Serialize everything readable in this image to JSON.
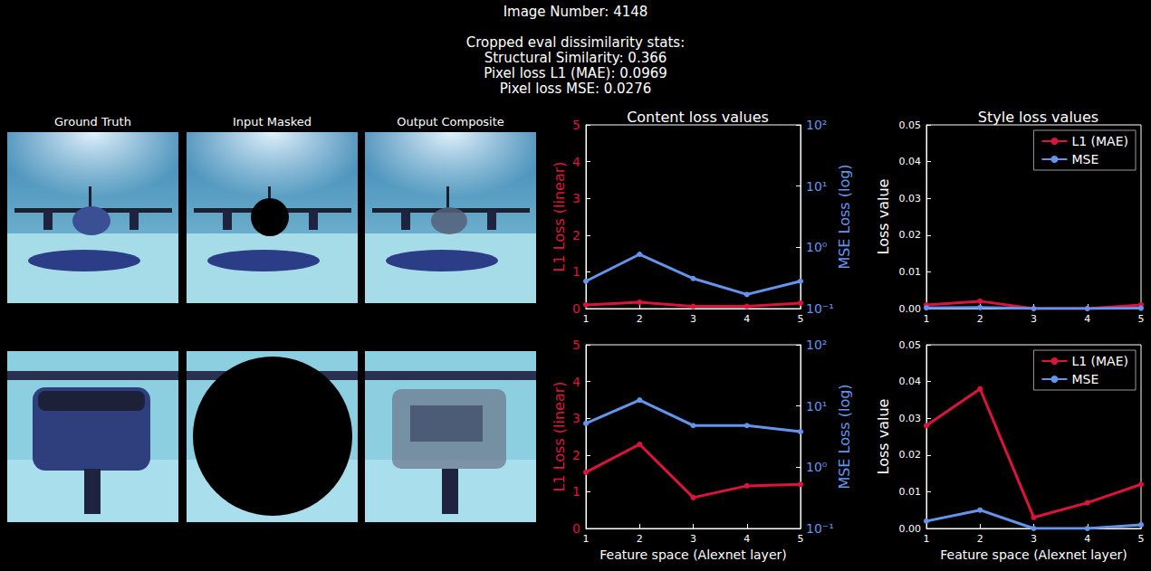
{
  "header": {
    "title": "Image Number: 4148",
    "stats_heading": "Cropped eval dissimilarity stats:",
    "stats": [
      "Structural Similarity: 0.366",
      "Pixel loss L1 (MAE): 0.0969",
      "Pixel loss MSE: 0.0276"
    ]
  },
  "images": {
    "column_titles": [
      "Ground Truth",
      "Input Masked",
      "Output Composite"
    ]
  },
  "chart_data": [
    {
      "type": "line",
      "title": "Content loss values",
      "x": [
        1,
        2,
        3,
        4,
        5
      ],
      "xlim": [
        1,
        5
      ],
      "xticks": [
        1,
        2,
        3,
        4,
        5
      ],
      "ylabel": "L1 Loss (linear)",
      "ylim": [
        0,
        5
      ],
      "yticks": [
        0,
        1,
        2,
        3,
        4,
        5
      ],
      "y2label": "MSE Loss (log)",
      "y2lim": [
        0.1,
        100
      ],
      "y2ticks": [
        {
          "value": 0.1,
          "label": "10⁻¹"
        },
        {
          "value": 1,
          "label": "10⁰"
        },
        {
          "value": 10,
          "label": "10¹"
        },
        {
          "value": 100,
          "label": "10²"
        }
      ],
      "log": "y2",
      "grid": false,
      "series": [
        {
          "color": "#dc143c",
          "marker": "circle",
          "values": [
            0.1,
            0.17,
            0.06,
            0.06,
            0.15
          ]
        },
        {
          "color": "#6495ed",
          "marker": "circle",
          "axis": "y2",
          "values": [
            0.28,
            0.77,
            0.31,
            0.17,
            0.28
          ]
        }
      ]
    },
    {
      "type": "line",
      "title": "Style loss values",
      "x": [
        1,
        2,
        3,
        4,
        5
      ],
      "xlim": [
        1,
        5
      ],
      "xticks": [
        1,
        2,
        3,
        4,
        5
      ],
      "ylabel": "Loss value",
      "ylim": [
        0,
        0.05
      ],
      "yticks": [
        {
          "value": 0,
          "label": "0.00"
        },
        {
          "value": 0.01,
          "label": "0.01"
        },
        {
          "value": 0.02,
          "label": "0.02"
        },
        {
          "value": 0.03,
          "label": "0.03"
        },
        {
          "value": 0.04,
          "label": "0.04"
        },
        {
          "value": 0.05,
          "label": "0.05"
        }
      ],
      "grid": false,
      "legend": "upper right",
      "series": [
        {
          "name": "L1 (MAE)",
          "color": "#dc143c",
          "marker": "circle",
          "values": [
            0.001,
            0.002,
            0.0,
            0.0,
            0.001
          ]
        },
        {
          "name": "MSE",
          "color": "#6495ed",
          "marker": "circle",
          "values": [
            0.0002,
            0.0003,
            0.0,
            0.0,
            0.0001
          ]
        }
      ]
    },
    {
      "type": "line",
      "x": [
        1,
        2,
        3,
        4,
        5
      ],
      "xlim": [
        1,
        5
      ],
      "xticks": [
        1,
        2,
        3,
        4,
        5
      ],
      "xlabel": "Feature space (Alexnet layer)",
      "ylabel": "L1 Loss (linear)",
      "ylim": [
        0,
        5
      ],
      "yticks": [
        0,
        1,
        2,
        3,
        4,
        5
      ],
      "y2label": "MSE Loss (log)",
      "y2lim": [
        0.1,
        100
      ],
      "y2ticks": [
        {
          "value": 0.1,
          "label": "10⁻¹"
        },
        {
          "value": 1,
          "label": "10⁰"
        },
        {
          "value": 10,
          "label": "10¹"
        },
        {
          "value": 100,
          "label": "10²"
        }
      ],
      "log": "y2",
      "grid": false,
      "series": [
        {
          "color": "#dc143c",
          "marker": "circle",
          "values": [
            1.53,
            2.29,
            0.84,
            1.16,
            1.2
          ]
        },
        {
          "color": "#6495ed",
          "marker": "circle",
          "axis": "y2",
          "values": [
            5.2,
            12.5,
            4.8,
            4.8,
            3.8
          ]
        }
      ]
    },
    {
      "type": "line",
      "x": [
        1,
        2,
        3,
        4,
        5
      ],
      "xlim": [
        1,
        5
      ],
      "xticks": [
        1,
        2,
        3,
        4,
        5
      ],
      "xlabel": "Feature space (Alexnet layer)",
      "ylabel": "Loss value",
      "ylim": [
        0,
        0.05
      ],
      "yticks": [
        {
          "value": 0,
          "label": "0.00"
        },
        {
          "value": 0.01,
          "label": "0.01"
        },
        {
          "value": 0.02,
          "label": "0.02"
        },
        {
          "value": 0.03,
          "label": "0.03"
        },
        {
          "value": 0.04,
          "label": "0.04"
        },
        {
          "value": 0.05,
          "label": "0.05"
        }
      ],
      "grid": false,
      "legend": "upper right",
      "series": [
        {
          "name": "L1 (MAE)",
          "color": "#dc143c",
          "marker": "circle",
          "values": [
            0.028,
            0.038,
            0.003,
            0.007,
            0.012
          ]
        },
        {
          "name": "MSE",
          "color": "#6495ed",
          "marker": "circle",
          "values": [
            0.002,
            0.005,
            0.0,
            0.0,
            0.001
          ]
        }
      ]
    }
  ]
}
